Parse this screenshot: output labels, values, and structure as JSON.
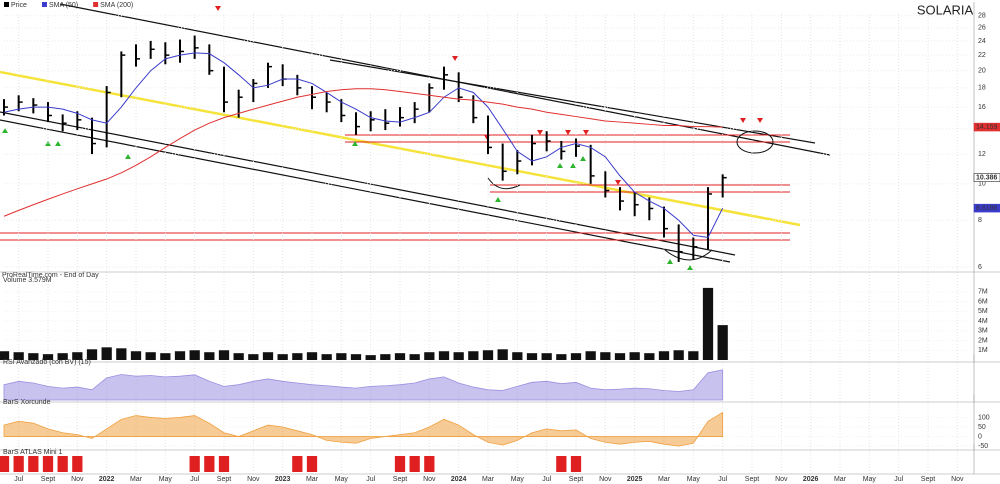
{
  "chart_data": [
    {
      "type": "ohlc",
      "title": "SOLARIA",
      "source": "ProRealTime.com - End of Day",
      "log": true,
      "x": [
        "2021-06",
        "2021-07",
        "2021-08",
        "2021-09",
        "2021-10",
        "2021-11",
        "2021-12",
        "2022-01",
        "2022-02",
        "2022-03",
        "2022-04",
        "2022-05",
        "2022-06",
        "2022-07",
        "2022-08",
        "2022-09",
        "2022-10",
        "2022-11",
        "2022-12",
        "2023-01",
        "2023-02",
        "2023-03",
        "2023-04",
        "2023-05",
        "2023-06",
        "2023-07",
        "2023-08",
        "2023-09",
        "2023-10",
        "2023-11",
        "2023-12",
        "2024-01",
        "2024-02",
        "2024-03",
        "2024-04",
        "2024-05",
        "2024-06",
        "2024-07",
        "2024-08",
        "2024-09",
        "2024-10",
        "2024-11",
        "2024-12",
        "2025-01",
        "2025-02",
        "2025-03",
        "2025-04",
        "2025-05",
        "2025-06",
        "2025-07"
      ],
      "series": [
        {
          "name": "Price",
          "color": "#000000",
          "high": [
            16.8,
            17.2,
            16.9,
            16.5,
            15.3,
            15.6,
            15.0,
            18.2,
            22.5,
            23.5,
            24.0,
            23.8,
            24.2,
            24.8,
            23.5,
            20.5,
            17.8,
            19.0,
            21.0,
            20.8,
            19.5,
            18.2,
            17.5,
            16.8,
            15.5,
            15.6,
            15.8,
            16.0,
            16.5,
            18.5,
            20.5,
            19.8,
            17.2,
            15.2,
            12.8,
            12.3,
            13.5,
            13.8,
            13.0,
            13.2,
            12.7,
            10.8,
            9.8,
            9.5,
            9.2,
            8.7,
            7.8,
            7.2,
            9.8,
            10.6
          ],
          "low": [
            15.2,
            15.6,
            15.4,
            14.6,
            13.8,
            13.9,
            12.0,
            12.5,
            17.0,
            20.5,
            21.5,
            20.8,
            21.0,
            21.5,
            19.5,
            15.5,
            15.0,
            16.5,
            18.0,
            18.2,
            17.2,
            15.8,
            15.5,
            14.6,
            13.5,
            13.8,
            13.9,
            14.2,
            14.5,
            15.5,
            17.8,
            16.5,
            14.5,
            12.0,
            10.2,
            10.6,
            11.2,
            12.2,
            11.6,
            11.8,
            10.0,
            9.2,
            8.5,
            8.2,
            8.0,
            7.2,
            6.2,
            6.3,
            6.7,
            9.2
          ],
          "close": [
            16.0,
            16.5,
            16.2,
            15.2,
            14.5,
            14.8,
            12.8,
            17.5,
            22.0,
            21.5,
            22.8,
            22.0,
            22.5,
            23.0,
            20.0,
            16.5,
            17.0,
            18.5,
            20.5,
            19.0,
            18.0,
            17.0,
            16.5,
            15.2,
            14.2,
            14.8,
            14.5,
            15.0,
            15.8,
            18.0,
            19.5,
            17.0,
            15.0,
            12.5,
            10.8,
            11.5,
            12.8,
            13.0,
            12.2,
            12.6,
            10.5,
            9.6,
            9.0,
            8.8,
            8.6,
            7.6,
            6.6,
            6.8,
            9.4,
            10.386
          ]
        },
        {
          "name": "SMA (50)",
          "color": "#3b3bcc",
          "values": [
            15.5,
            15.8,
            16.0,
            16.0,
            15.8,
            15.4,
            14.8,
            14.5,
            16.0,
            18.0,
            20.0,
            21.5,
            22.0,
            22.3,
            22.2,
            21.0,
            19.5,
            18.0,
            18.3,
            19.0,
            19.0,
            18.5,
            17.5,
            16.5,
            15.8,
            15.0,
            14.7,
            14.6,
            15.0,
            15.5,
            17.0,
            18.0,
            17.5,
            16.0,
            14.0,
            12.2,
            11.5,
            11.8,
            12.5,
            12.8,
            12.5,
            11.8,
            10.5,
            9.5,
            9.0,
            8.6,
            8.0,
            7.3,
            7.2,
            8.6186
          ]
        },
        {
          "name": "SMA (200)",
          "color": "#e03030",
          "values": [
            8.2,
            8.5,
            8.8,
            9.1,
            9.4,
            9.7,
            10.0,
            10.3,
            10.7,
            11.2,
            11.8,
            12.5,
            13.2,
            13.9,
            14.5,
            15.0,
            15.4,
            15.8,
            16.2,
            16.6,
            17.0,
            17.3,
            17.6,
            17.8,
            17.9,
            17.9,
            17.8,
            17.6,
            17.4,
            17.2,
            17.0,
            16.8,
            16.7,
            16.5,
            16.3,
            16.0,
            15.8,
            15.5,
            15.3,
            15.1,
            14.9,
            14.7,
            14.6,
            14.5,
            14.4,
            14.3,
            14.3,
            14.2,
            14.2,
            14.159
          ]
        }
      ],
      "ylim": [
        5.9,
        28.3
      ],
      "yticks": [
        6,
        8,
        10,
        12,
        14,
        16,
        18,
        20,
        22,
        24,
        26,
        28
      ],
      "grid": true
    },
    {
      "type": "bar",
      "title": "Volume 3.579M",
      "color": "#111111",
      "x": [
        "2021-06",
        "2021-07",
        "2021-08",
        "2021-09",
        "2021-10",
        "2021-11",
        "2021-12",
        "2022-01",
        "2022-02",
        "2022-03",
        "2022-04",
        "2022-05",
        "2022-06",
        "2022-07",
        "2022-08",
        "2022-09",
        "2022-10",
        "2022-11",
        "2022-12",
        "2023-01",
        "2023-02",
        "2023-03",
        "2023-04",
        "2023-05",
        "2023-06",
        "2023-07",
        "2023-08",
        "2023-09",
        "2023-10",
        "2023-11",
        "2023-12",
        "2024-01",
        "2024-02",
        "2024-03",
        "2024-04",
        "2024-05",
        "2024-06",
        "2024-07",
        "2024-08",
        "2024-09",
        "2024-10",
        "2024-11",
        "2024-12",
        "2025-01",
        "2025-02",
        "2025-03",
        "2025-04",
        "2025-05",
        "2025-06",
        "2025-07"
      ],
      "values": [
        0.9,
        0.8,
        0.7,
        0.6,
        0.7,
        0.8,
        1.1,
        1.3,
        1.2,
        0.9,
        0.8,
        0.7,
        0.9,
        1.0,
        0.8,
        1.0,
        0.7,
        0.6,
        0.8,
        0.6,
        0.7,
        0.8,
        0.6,
        0.7,
        0.6,
        0.5,
        0.6,
        0.7,
        0.6,
        0.8,
        0.9,
        0.8,
        0.9,
        1.0,
        1.1,
        0.8,
        0.7,
        0.7,
        0.6,
        0.7,
        0.9,
        0.8,
        0.7,
        0.8,
        0.7,
        0.9,
        1.0,
        0.9,
        7.4,
        3.579
      ],
      "ylim": [
        0,
        7.8
      ],
      "yticks": [
        {
          "value": 1,
          "label": "1M"
        },
        {
          "value": 2,
          "label": "2M"
        },
        {
          "value": 3,
          "label": "3M"
        },
        {
          "value": 4,
          "label": "4M"
        },
        {
          "value": 5,
          "label": "5M"
        },
        {
          "value": 6,
          "label": "6M"
        },
        {
          "value": 7,
          "label": "7M"
        }
      ]
    },
    {
      "type": "area",
      "title": "RSI Avanzado (con BV) (15)",
      "color": "#9b8fe0",
      "x": [
        "2021-06",
        "2021-07",
        "2021-08",
        "2021-09",
        "2021-10",
        "2021-11",
        "2021-12",
        "2022-01",
        "2022-02",
        "2022-03",
        "2022-04",
        "2022-05",
        "2022-06",
        "2022-07",
        "2022-08",
        "2022-09",
        "2022-10",
        "2022-11",
        "2022-12",
        "2023-01",
        "2023-02",
        "2023-03",
        "2023-04",
        "2023-05",
        "2023-06",
        "2023-07",
        "2023-08",
        "2023-09",
        "2023-10",
        "2023-11",
        "2023-12",
        "2024-01",
        "2024-02",
        "2024-03",
        "2024-04",
        "2024-05",
        "2024-06",
        "2024-07",
        "2024-08",
        "2024-09",
        "2024-10",
        "2024-11",
        "2024-12",
        "2025-01",
        "2025-02",
        "2025-03",
        "2025-04",
        "2025-05",
        "2025-06",
        "2025-07"
      ],
      "values": [
        45,
        55,
        50,
        40,
        35,
        38,
        30,
        65,
        75,
        70,
        72,
        68,
        70,
        74,
        55,
        40,
        45,
        55,
        62,
        55,
        50,
        45,
        42,
        38,
        35,
        40,
        42,
        45,
        50,
        62,
        68,
        50,
        38,
        30,
        28,
        40,
        52,
        55,
        48,
        52,
        35,
        30,
        32,
        35,
        33,
        28,
        25,
        30,
        80,
        88.58
      ],
      "ylim": [
        0,
        100
      ]
    },
    {
      "type": "area",
      "title": "BarS Xorcunde",
      "color": "#f0a040",
      "x": [
        "2021-06",
        "2021-07",
        "2021-08",
        "2021-09",
        "2021-10",
        "2021-11",
        "2021-12",
        "2022-01",
        "2022-02",
        "2022-03",
        "2022-04",
        "2022-05",
        "2022-06",
        "2022-07",
        "2022-08",
        "2022-09",
        "2022-10",
        "2022-11",
        "2022-12",
        "2023-01",
        "2023-02",
        "2023-03",
        "2023-04",
        "2023-05",
        "2023-06",
        "2023-07",
        "2023-08",
        "2023-09",
        "2023-10",
        "2023-11",
        "2023-12",
        "2024-01",
        "2024-02",
        "2024-03",
        "2024-04",
        "2024-05",
        "2024-06",
        "2024-07",
        "2024-08",
        "2024-09",
        "2024-10",
        "2024-11",
        "2024-12",
        "2025-01",
        "2025-02",
        "2025-03",
        "2025-04",
        "2025-05",
        "2025-06",
        "2025-07"
      ],
      "values": [
        60,
        80,
        70,
        40,
        20,
        10,
        -10,
        40,
        90,
        110,
        100,
        95,
        100,
        110,
        70,
        20,
        0,
        30,
        60,
        50,
        30,
        10,
        -20,
        -30,
        -35,
        -10,
        0,
        10,
        20,
        50,
        90,
        60,
        10,
        -30,
        -45,
        -20,
        20,
        40,
        30,
        35,
        -10,
        -30,
        -40,
        -30,
        -25,
        -40,
        -50,
        -35,
        80,
        126.3
      ],
      "ylim": [
        -60,
        160
      ],
      "yticks": [
        -50,
        0,
        50,
        100
      ]
    },
    {
      "type": "bar",
      "title": "BarS ATLAS Mini 1",
      "color": "#e02020",
      "x": [
        "2021-06",
        "2021-07",
        "2021-08",
        "2021-09",
        "2021-10",
        "2021-11",
        "2021-12",
        "2022-01",
        "2022-02",
        "2022-03",
        "2022-04",
        "2022-05",
        "2022-06",
        "2022-07",
        "2022-08",
        "2022-09",
        "2022-10",
        "2022-11",
        "2022-12",
        "2023-01",
        "2023-02",
        "2023-03",
        "2023-04",
        "2023-05",
        "2023-06",
        "2023-07",
        "2023-08",
        "2023-09",
        "2023-10",
        "2023-11",
        "2023-12",
        "2024-01",
        "2024-02",
        "2024-03",
        "2024-04",
        "2024-05",
        "2024-06",
        "2024-07",
        "2024-08",
        "2024-09",
        "2024-10",
        "2024-11",
        "2024-12",
        "2025-01",
        "2025-02",
        "2025-03",
        "2025-04",
        "2025-05",
        "2025-06",
        "2025-07"
      ],
      "values": [
        1,
        1,
        1,
        1,
        1,
        1,
        0,
        0,
        0,
        0,
        0,
        0,
        0,
        1,
        1,
        1,
        0,
        0,
        0,
        0,
        1,
        1,
        0,
        0,
        0,
        0,
        0,
        1,
        1,
        1,
        0,
        0,
        0,
        0,
        0,
        0,
        0,
        0,
        1,
        1,
        0,
        0,
        0,
        0,
        0,
        0,
        0,
        0,
        0,
        0
      ],
      "ylim": [
        0,
        1
      ],
      "xlim": [
        "2021-06",
        "2026-12"
      ],
      "xticks": [
        {
          "value": "2021-07",
          "label": "Jul"
        },
        {
          "value": "2021-09",
          "label": "Sept"
        },
        {
          "value": "2021-11",
          "label": "Nov"
        },
        {
          "value": "2022-01",
          "label": "2022"
        },
        {
          "value": "2022-03",
          "label": "Mar"
        },
        {
          "value": "2022-05",
          "label": "May"
        },
        {
          "value": "2022-07",
          "label": "Jul"
        },
        {
          "value": "2022-09",
          "label": "Sept"
        },
        {
          "value": "2022-11",
          "label": "Nov"
        },
        {
          "value": "2023-01",
          "label": "2023"
        },
        {
          "value": "2023-03",
          "label": "Mar"
        },
        {
          "value": "2023-05",
          "label": "May"
        },
        {
          "value": "2023-07",
          "label": "Jul"
        },
        {
          "value": "2023-09",
          "label": "Sept"
        },
        {
          "value": "2023-11",
          "label": "Nov"
        },
        {
          "value": "2024-01",
          "label": "2024"
        },
        {
          "value": "2024-03",
          "label": "Mar"
        },
        {
          "value": "2024-05",
          "label": "May"
        },
        {
          "value": "2024-07",
          "label": "Jul"
        },
        {
          "value": "2024-09",
          "label": "Sept"
        },
        {
          "value": "2024-11",
          "label": "Nov"
        },
        {
          "value": "2025-01",
          "label": "2025"
        },
        {
          "value": "2025-03",
          "label": "Mar"
        },
        {
          "value": "2025-05",
          "label": "May"
        },
        {
          "value": "2025-07",
          "label": "Jul"
        },
        {
          "value": "2025-09",
          "label": "Sept"
        },
        {
          "value": "2025-11",
          "label": "Nov"
        },
        {
          "value": "2026-01",
          "label": "2026"
        },
        {
          "value": "2026-03",
          "label": "Mar"
        },
        {
          "value": "2026-05",
          "label": "May"
        },
        {
          "value": "2026-07",
          "label": "Jul"
        },
        {
          "value": "2026-09",
          "label": "Sept"
        },
        {
          "value": "2026-11",
          "label": "Nov"
        }
      ]
    }
  ]
}
